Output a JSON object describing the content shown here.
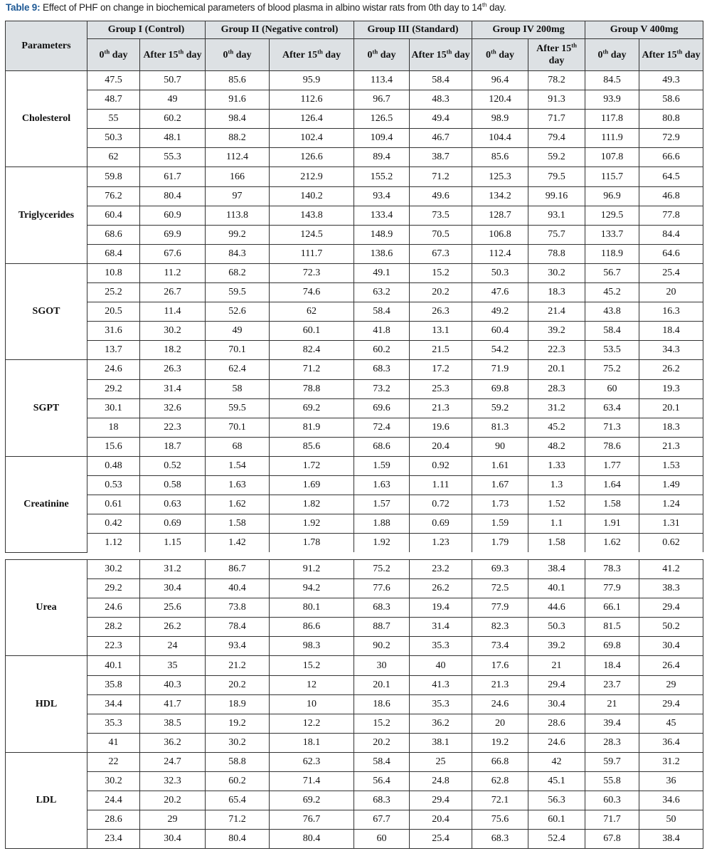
{
  "title": {
    "label": "Table 9:",
    "text_a": " Effect of PHF on change in biochemical parameters of blood plasma in albino wistar rats from 0th day to 14",
    "sup": "th",
    "text_b": " day."
  },
  "header": {
    "parameters": "Parameters",
    "groups": [
      "Group I (Control)",
      "Group II (Negative control)",
      "Group III (Standard)",
      "Group IV 200mg",
      "Group V 400mg"
    ],
    "subcols": [
      {
        "base": "0",
        "sup": "th",
        "rest": " day"
      },
      {
        "base": "After 15",
        "sup": "th",
        "rest": " day"
      },
      {
        "base": "0",
        "sup": "th",
        "rest": " day"
      },
      {
        "base": "After 15",
        "sup": "th",
        "rest": " day"
      },
      {
        "base": "0",
        "sup": "th",
        "rest": " day"
      },
      {
        "base": "After 15",
        "sup": "th",
        "rest": " day"
      },
      {
        "base": "0",
        "sup": "th",
        "rest": " day"
      },
      {
        "base": "After 15",
        "sup": "th",
        "rest": " day"
      },
      {
        "base": "0",
        "sup": "th",
        "rest": " day"
      },
      {
        "base": "After 15",
        "sup": "th",
        "rest": " day"
      }
    ]
  },
  "parameters": [
    {
      "name": "Cholesterol",
      "rows": [
        [
          "47.5",
          "50.7",
          "85.6",
          "95.9",
          "113.4",
          "58.4",
          "96.4",
          "78.2",
          "84.5",
          "49.3"
        ],
        [
          "48.7",
          "49",
          "91.6",
          "112.6",
          "96.7",
          "48.3",
          "120.4",
          "91.3",
          "93.9",
          "58.6"
        ],
        [
          "55",
          "60.2",
          "98.4",
          "126.4",
          "126.5",
          "49.4",
          "98.9",
          "71.7",
          "117.8",
          "80.8"
        ],
        [
          "50.3",
          "48.1",
          "88.2",
          "102.4",
          "109.4",
          "46.7",
          "104.4",
          "79.4",
          "111.9",
          "72.9"
        ],
        [
          "62",
          "55.3",
          "112.4",
          "126.6",
          "89.4",
          "38.7",
          "85.6",
          "59.2",
          "107.8",
          "66.6"
        ]
      ]
    },
    {
      "name": "Triglycerides",
      "rows": [
        [
          "59.8",
          "61.7",
          "166",
          "212.9",
          "155.2",
          "71.2",
          "125.3",
          "79.5",
          "115.7",
          "64.5"
        ],
        [
          "76.2",
          "80.4",
          "97",
          "140.2",
          "93.4",
          "49.6",
          "134.2",
          "99.16",
          "96.9",
          "46.8"
        ],
        [
          "60.4",
          "60.9",
          "113.8",
          "143.8",
          "133.4",
          "73.5",
          "128.7",
          "93.1",
          "129.5",
          "77.8"
        ],
        [
          "68.6",
          "69.9",
          "99.2",
          "124.5",
          "148.9",
          "70.5",
          "106.8",
          "75.7",
          "133.7",
          "84.4"
        ],
        [
          "68.4",
          "67.6",
          "84.3",
          "111.7",
          "138.6",
          "67.3",
          "112.4",
          "78.8",
          "118.9",
          "64.6"
        ]
      ]
    },
    {
      "name": "SGOT",
      "rows": [
        [
          "10.8",
          "11.2",
          "68.2",
          "72.3",
          "49.1",
          "15.2",
          "50.3",
          "30.2",
          "56.7",
          "25.4"
        ],
        [
          "25.2",
          "26.7",
          "59.5",
          "74.6",
          "63.2",
          "20.2",
          "47.6",
          "18.3",
          "45.2",
          "20"
        ],
        [
          "20.5",
          "11.4",
          "52.6",
          "62",
          "58.4",
          "26.3",
          "49.2",
          "21.4",
          "43.8",
          "16.3"
        ],
        [
          "31.6",
          "30.2",
          "49",
          "60.1",
          "41.8",
          "13.1",
          "60.4",
          "39.2",
          "58.4",
          "18.4"
        ],
        [
          "13.7",
          "18.2",
          "70.1",
          "82.4",
          "60.2",
          "21.5",
          "54.2",
          "22.3",
          "53.5",
          "34.3"
        ]
      ]
    },
    {
      "name": "SGPT",
      "rows": [
        [
          "24.6",
          "26.3",
          "62.4",
          "71.2",
          "68.3",
          "17.2",
          "71.9",
          "20.1",
          "75.2",
          "26.2"
        ],
        [
          "29.2",
          "31.4",
          "58",
          "78.8",
          "73.2",
          "25.3",
          "69.8",
          "28.3",
          "60",
          "19.3"
        ],
        [
          "30.1",
          "32.6",
          "59.5",
          "69.2",
          "69.6",
          "21.3",
          "59.2",
          "31.2",
          "63.4",
          "20.1"
        ],
        [
          "18",
          "22.3",
          "70.1",
          "81.9",
          "72.4",
          "19.6",
          "81.3",
          "45.2",
          "71.3",
          "18.3"
        ],
        [
          "15.6",
          "18.7",
          "68",
          "85.6",
          "68.6",
          "20.4",
          "90",
          "48.2",
          "78.6",
          "21.3"
        ]
      ]
    },
    {
      "name": "Creatinine",
      "rows": [
        [
          "0.48",
          "0.52",
          "1.54",
          "1.72",
          "1.59",
          "0.92",
          "1.61",
          "1.33",
          "1.77",
          "1.53"
        ],
        [
          "0.53",
          "0.58",
          "1.63",
          "1.69",
          "1.63",
          "1.11",
          "1.67",
          "1.3",
          "1.64",
          "1.49"
        ],
        [
          "0.61",
          "0.63",
          "1.62",
          "1.82",
          "1.57",
          "0.72",
          "1.73",
          "1.52",
          "1.58",
          "1.24"
        ],
        [
          "0.42",
          "0.69",
          "1.58",
          "1.92",
          "1.88",
          "0.69",
          "1.59",
          "1.1",
          "1.91",
          "1.31"
        ],
        [
          "1.12",
          "1.15",
          "1.42",
          "1.78",
          "1.92",
          "1.23",
          "1.79",
          "1.58",
          "1.62",
          "0.62"
        ]
      ]
    },
    {
      "name": "Urea",
      "rows": [
        [
          "30.2",
          "31.2",
          "86.7",
          "91.2",
          "75.2",
          "23.2",
          "69.3",
          "38.4",
          "78.3",
          "41.2"
        ],
        [
          "29.2",
          "30.4",
          "40.4",
          "94.2",
          "77.6",
          "26.2",
          "72.5",
          "40.1",
          "77.9",
          "38.3"
        ],
        [
          "24.6",
          "25.6",
          "73.8",
          "80.1",
          "68.3",
          "19.4",
          "77.9",
          "44.6",
          "66.1",
          "29.4"
        ],
        [
          "28.2",
          "26.2",
          "78.4",
          "86.6",
          "88.7",
          "31.4",
          "82.3",
          "50.3",
          "81.5",
          "50.2"
        ],
        [
          "22.3",
          "24",
          "93.4",
          "98.3",
          "90.2",
          "35.3",
          "73.4",
          "39.2",
          "69.8",
          "30.4"
        ]
      ]
    },
    {
      "name": "HDL",
      "rows": [
        [
          "40.1",
          "35",
          "21.2",
          "15.2",
          "30",
          "40",
          "17.6",
          "21",
          "18.4",
          "26.4"
        ],
        [
          "35.8",
          "40.3",
          "20.2",
          "12",
          "20.1",
          "41.3",
          "21.3",
          "29.4",
          "23.7",
          "29"
        ],
        [
          "34.4",
          "41.7",
          "18.9",
          "10",
          "18.6",
          "35.3",
          "24.6",
          "30.4",
          "21",
          "29.4"
        ],
        [
          "35.3",
          "38.5",
          "19.2",
          "12.2",
          "15.2",
          "36.2",
          "20",
          "28.6",
          "39.4",
          "45"
        ],
        [
          "41",
          "36.2",
          "30.2",
          "18.1",
          "20.2",
          "38.1",
          "19.2",
          "24.6",
          "28.3",
          "36.4"
        ]
      ]
    },
    {
      "name": "LDL",
      "rows": [
        [
          "22",
          "24.7",
          "58.8",
          "62.3",
          "58.4",
          "25",
          "66.8",
          "42",
          "59.7",
          "31.2"
        ],
        [
          "30.2",
          "32.3",
          "60.2",
          "71.4",
          "56.4",
          "24.8",
          "62.8",
          "45.1",
          "55.8",
          "36"
        ],
        [
          "24.4",
          "20.2",
          "65.4",
          "69.2",
          "68.3",
          "29.4",
          "72.1",
          "56.3",
          "60.3",
          "34.6"
        ],
        [
          "28.6",
          "29",
          "71.2",
          "76.7",
          "67.7",
          "20.4",
          "75.6",
          "60.1",
          "71.7",
          "50"
        ],
        [
          "23.4",
          "30.4",
          "80.4",
          "80.4",
          "60",
          "25.4",
          "68.3",
          "52.4",
          "67.8",
          "38.4"
        ]
      ]
    }
  ]
}
